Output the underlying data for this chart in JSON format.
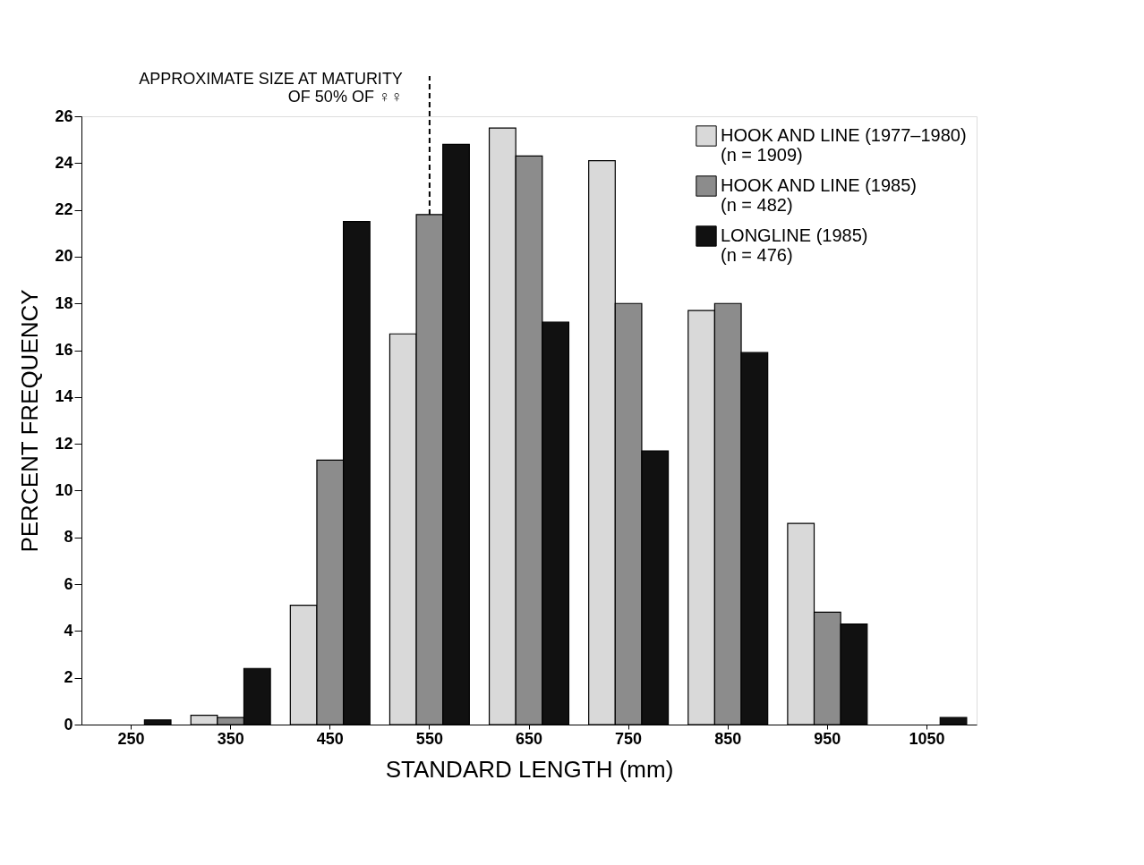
{
  "chart_data": {
    "type": "bar",
    "xlabel": "STANDARD LENGTH (mm)",
    "ylabel": "PERCENT FREQUENCY",
    "categories": [
      "250",
      "350",
      "450",
      "550",
      "650",
      "750",
      "850",
      "950",
      "1050"
    ],
    "series": [
      {
        "name": "HOOK AND LINE (1977–1980)\n(n = 1909)",
        "color": "#d9d9d9",
        "values": [
          null,
          0.4,
          5.1,
          16.7,
          25.5,
          24.1,
          17.7,
          8.6,
          null
        ]
      },
      {
        "name": "HOOK AND LINE (1985)\n(n = 482)",
        "color": "#8c8c8c",
        "values": [
          null,
          0.3,
          11.3,
          21.8,
          24.3,
          18.0,
          18.0,
          4.8,
          null
        ]
      },
      {
        "name": "LONGLINE (1985)\n(n = 476)",
        "color": "#111111",
        "values": [
          0.2,
          2.4,
          21.5,
          24.8,
          17.2,
          11.7,
          15.9,
          4.3,
          0.3
        ]
      }
    ],
    "ylim": [
      0,
      26
    ],
    "yticks": [
      0,
      2,
      4,
      6,
      8,
      10,
      12,
      14,
      16,
      18,
      20,
      22,
      24,
      26
    ],
    "ref_lines": [
      {
        "axis": "x",
        "value": "550",
        "label": "APPROXIMATE SIZE AT MATURITY\nOF 50% OF ♀♀",
        "line_style": "dashed"
      }
    ],
    "grid": false,
    "legend": "top right"
  }
}
